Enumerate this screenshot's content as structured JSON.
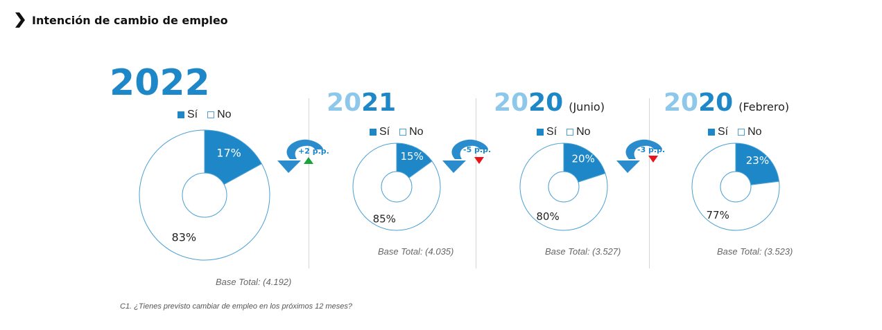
{
  "header": {
    "title": "Intención de cambio de empleo"
  },
  "colors": {
    "si": "#1e87c7",
    "no": "#ffffff",
    "outline": "#4a9fd3",
    "year_dark": "#1e87c7",
    "year_light": "#8dc8ea",
    "up": "#1aa33b",
    "down": "#e8131b"
  },
  "legend": {
    "si": "Sí",
    "no": "No"
  },
  "chart_data": [
    {
      "type": "pie",
      "year_prefix": "",
      "year_suffix": "2022",
      "subtitle": "",
      "categories": [
        "Sí",
        "No"
      ],
      "values": [
        17,
        83
      ],
      "labels": [
        "17%",
        "83%"
      ],
      "base": "Base Total: (4.192)"
    },
    {
      "type": "pie",
      "year_prefix": "20",
      "year_suffix": "21",
      "subtitle": "",
      "categories": [
        "Sí",
        "No"
      ],
      "values": [
        15,
        85
      ],
      "labels": [
        "15%",
        "85%"
      ],
      "base": "Base Total: (4.035)"
    },
    {
      "type": "pie",
      "year_prefix": "20",
      "year_suffix": "20",
      "subtitle": "(Junio)",
      "categories": [
        "Sí",
        "No"
      ],
      "values": [
        20,
        80
      ],
      "labels": [
        "20%",
        "80%"
      ],
      "base": "Base Total: (3.527)"
    },
    {
      "type": "pie",
      "year_prefix": "20",
      "year_suffix": "20",
      "subtitle": "(Febrero)",
      "categories": [
        "Sí",
        "No"
      ],
      "values": [
        23,
        77
      ],
      "labels": [
        "23%",
        "77%"
      ],
      "base": "Base Total: (3.523)"
    }
  ],
  "changes": [
    {
      "label": "+2 p.p.",
      "direction": "up"
    },
    {
      "label": "-5 p.p.",
      "direction": "down"
    },
    {
      "label": "-3 p.p.",
      "direction": "down"
    }
  ],
  "footnote": "C1. ¿Tienes previsto cambiar de empleo en los próximos 12 meses?"
}
